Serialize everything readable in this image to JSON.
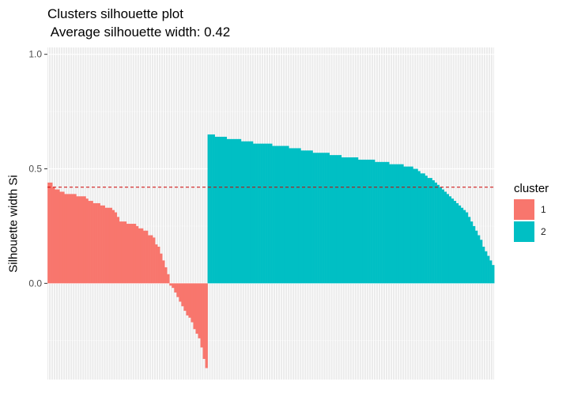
{
  "chart_data": {
    "type": "bar",
    "title": "Clusters silhouette plot",
    "subtitle": " Average silhouette width: 0.42",
    "xlabel": "",
    "ylabel": "Silhouette width Si",
    "ylim": [
      -0.42,
      1.03
    ],
    "yticks": [
      0.0,
      0.5,
      1.0
    ],
    "ytick_labels": [
      "0.0",
      "0.5",
      "1.0"
    ],
    "average_silhouette": 0.42,
    "legend": {
      "title": "cluster",
      "position": "right"
    },
    "series": [
      {
        "name": "1",
        "color": "#F8766D",
        "values": [
          0.44,
          0.44,
          0.42,
          0.41,
          0.41,
          0.4,
          0.4,
          0.39,
          0.39,
          0.39,
          0.39,
          0.39,
          0.38,
          0.38,
          0.38,
          0.38,
          0.37,
          0.36,
          0.36,
          0.35,
          0.35,
          0.35,
          0.34,
          0.34,
          0.33,
          0.33,
          0.33,
          0.32,
          0.31,
          0.29,
          0.27,
          0.27,
          0.27,
          0.26,
          0.26,
          0.26,
          0.26,
          0.25,
          0.24,
          0.24,
          0.23,
          0.23,
          0.21,
          0.21,
          0.2,
          0.17,
          0.16,
          0.13,
          0.1,
          0.07,
          0.04,
          -0.01,
          -0.02,
          -0.04,
          -0.06,
          -0.08,
          -0.1,
          -0.12,
          -0.14,
          -0.15,
          -0.17,
          -0.2,
          -0.22,
          -0.24,
          -0.28,
          -0.33,
          -0.37
        ]
      },
      {
        "name": "2",
        "color": "#00BFC4",
        "values": [
          0.65,
          0.65,
          0.65,
          0.64,
          0.64,
          0.64,
          0.64,
          0.64,
          0.63,
          0.63,
          0.63,
          0.63,
          0.63,
          0.63,
          0.62,
          0.62,
          0.62,
          0.62,
          0.62,
          0.61,
          0.61,
          0.61,
          0.61,
          0.61,
          0.61,
          0.61,
          0.61,
          0.6,
          0.6,
          0.6,
          0.6,
          0.6,
          0.6,
          0.6,
          0.59,
          0.59,
          0.59,
          0.59,
          0.59,
          0.58,
          0.58,
          0.58,
          0.58,
          0.58,
          0.57,
          0.57,
          0.57,
          0.57,
          0.57,
          0.57,
          0.57,
          0.56,
          0.56,
          0.56,
          0.56,
          0.56,
          0.55,
          0.55,
          0.55,
          0.55,
          0.55,
          0.55,
          0.55,
          0.54,
          0.54,
          0.54,
          0.54,
          0.54,
          0.54,
          0.54,
          0.53,
          0.53,
          0.53,
          0.53,
          0.53,
          0.53,
          0.52,
          0.52,
          0.52,
          0.52,
          0.52,
          0.52,
          0.51,
          0.51,
          0.51,
          0.51,
          0.5,
          0.5,
          0.49,
          0.48,
          0.48,
          0.47,
          0.46,
          0.46,
          0.45,
          0.44,
          0.43,
          0.42,
          0.41,
          0.4,
          0.39,
          0.38,
          0.37,
          0.36,
          0.35,
          0.34,
          0.33,
          0.32,
          0.31,
          0.29,
          0.27,
          0.25,
          0.23,
          0.21,
          0.19,
          0.16,
          0.14,
          0.12,
          0.1,
          0.08
        ]
      }
    ]
  }
}
